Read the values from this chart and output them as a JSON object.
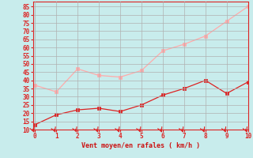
{
  "x": [
    0,
    1,
    2,
    3,
    4,
    5,
    6,
    7,
    8,
    9,
    10
  ],
  "line1_y": [
    13,
    19,
    22,
    23,
    21,
    25,
    31,
    35,
    40,
    32,
    39
  ],
  "line2_y": [
    37,
    33,
    47,
    43,
    42,
    46,
    58,
    62,
    67,
    76,
    85
  ],
  "line1_color": "#dd2222",
  "line2_color": "#ffaaaa",
  "bg_color": "#c8ecec",
  "grid_color": "#b0b0b0",
  "axis_color": "#dd2222",
  "xlabel": "Vent moyen/en rafales ( km/h )",
  "xlabel_color": "#cc1111",
  "tick_color": "#dd2222",
  "ylim": [
    10,
    88
  ],
  "yticks": [
    10,
    15,
    20,
    25,
    30,
    35,
    40,
    45,
    50,
    55,
    60,
    65,
    70,
    75,
    80,
    85
  ],
  "xlim": [
    -0.1,
    10
  ],
  "xticks": [
    0,
    1,
    2,
    3,
    4,
    5,
    6,
    7,
    8,
    9,
    10
  ]
}
